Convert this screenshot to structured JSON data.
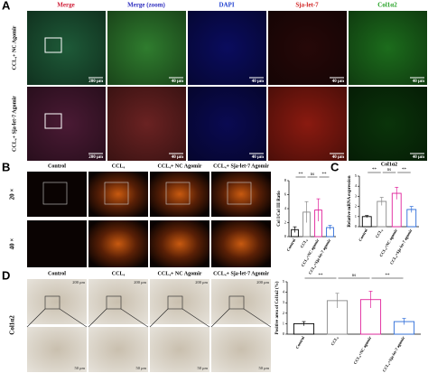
{
  "panels": {
    "a": {
      "label": "A",
      "columns": [
        "Merge",
        "Merge (zoom)",
        "DAPI",
        "Sja-let-7",
        "Col1α2"
      ],
      "rows": [
        "CCL₄+ NC Agomir",
        "CCL₄+ Sja-let-7 Agomir"
      ],
      "scale_bars": [
        [
          "200 μm",
          "40 μm",
          "40 μm",
          "40 μm",
          "40 μm"
        ],
        [
          "200 μm",
          "40 μm",
          "40 μm",
          "40 μm",
          "40 μm"
        ]
      ]
    },
    "b": {
      "label": "B",
      "columns": [
        "Control",
        "CCL₄",
        "CCL₄+ NC Agomir",
        "CCL₄+ Sja-let-7 Agomir"
      ],
      "rows": [
        "20 ×",
        "40 ×"
      ]
    },
    "c": {
      "label": "C"
    },
    "d": {
      "label": "D",
      "columns": [
        "Control",
        "CCL₄",
        "CCL₄+ NC Agomir",
        "CCL₄+ Sja-let-7 Agomir"
      ],
      "rows": [
        "Col1α2"
      ],
      "scale_bars": [
        "200 μm",
        "50 μm"
      ]
    }
  },
  "chart_data": [
    {
      "type": "bar",
      "y_label": "Col I/Col III Ratio",
      "categories": [
        "Control",
        "CCL₄",
        "CCL₄+NC agomir",
        "CCL₄+Sja-let-7 agomir"
      ],
      "values": [
        1,
        3.5,
        3.8,
        1.3
      ],
      "errors": [
        0.4,
        1.5,
        1.6,
        0.3
      ],
      "colors": [
        "#000000",
        "#888888",
        "#e0209a",
        "#2a6ad8"
      ],
      "ylim": [
        0,
        8
      ],
      "yticks": [
        0,
        2,
        4,
        6,
        8
      ],
      "annotations": [
        "**",
        "ns",
        "**"
      ]
    },
    {
      "type": "bar",
      "title": "Col1α2",
      "y_label": "Relative mRNA expression",
      "categories": [
        "Control",
        "CCL₄",
        "CCL₄+NC agomir",
        "CCL₄+Sja-let-7 agomir"
      ],
      "values": [
        1,
        2.5,
        3.3,
        1.7
      ],
      "errors": [
        0.1,
        0.4,
        0.6,
        0.3
      ],
      "colors": [
        "#000000",
        "#888888",
        "#e0209a",
        "#2a6ad8"
      ],
      "ylim": [
        0,
        5
      ],
      "yticks": [
        0,
        1,
        2,
        3,
        4,
        5
      ],
      "annotations": [
        "**",
        "ns",
        "**"
      ]
    },
    {
      "type": "bar",
      "y_label": "Positive area of Col1α2 (%)",
      "categories": [
        "Control",
        "CCL₄",
        "CCL₄+NC agomir",
        "CCL₄+Sja-let-7 agomir"
      ],
      "values": [
        1,
        3.2,
        3.3,
        1.2
      ],
      "errors": [
        0.2,
        0.7,
        0.8,
        0.3
      ],
      "colors": [
        "#000000",
        "#888888",
        "#e0209a",
        "#2a6ad8"
      ],
      "ylim": [
        0,
        5
      ],
      "yticks": [
        0,
        1,
        2,
        3,
        4,
        5
      ],
      "annotations": [
        "**",
        "ns",
        "**"
      ]
    }
  ]
}
